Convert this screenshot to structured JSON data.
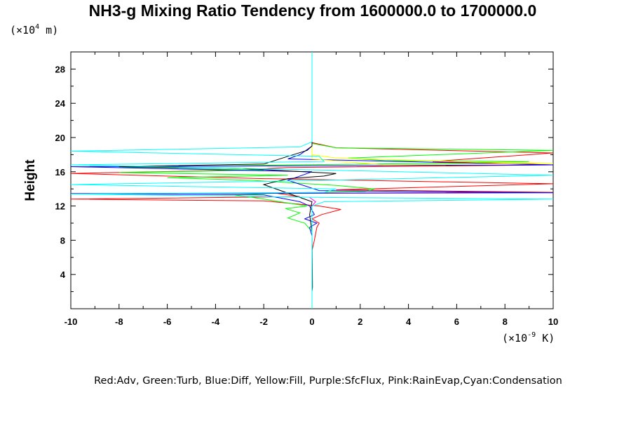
{
  "chart_data": {
    "type": "line",
    "title": "NH3-g Mixing Ratio Tendency from 1600000.0 to 1700000.0",
    "ylabel": "Height",
    "y_unit": {
      "prefix": "(×10",
      "exp": "4",
      "suffix": " m)"
    },
    "x_unit": {
      "prefix": "(×10",
      "exp": "-9",
      "suffix": " K)"
    },
    "xlim": [
      -10,
      10
    ],
    "ylim": [
      0,
      30
    ],
    "xticks": [
      -10,
      -8,
      -6,
      -4,
      -2,
      0,
      2,
      4,
      6,
      8,
      10
    ],
    "yticks": [
      4,
      8,
      12,
      16,
      20,
      24,
      28
    ],
    "grid": false,
    "legend": "Red:Adv, Green:Turb, Blue:Diff, Yellow:Fill, Purple:SfcFlux, Pink:RainEvap,Cyan:Condensation",
    "series": [
      {
        "color": "#ff0000",
        "points": [
          [
            0,
            0
          ],
          [
            0,
            6.8
          ],
          [
            0.1,
            8
          ],
          [
            0.2,
            9.5
          ],
          [
            0.3,
            10
          ],
          [
            0,
            10.5
          ],
          [
            0.4,
            11
          ],
          [
            1.2,
            11.6
          ],
          [
            0.3,
            12
          ],
          [
            -2,
            12.6
          ],
          [
            -10,
            12.8
          ],
          [
            -0.5,
            13.1
          ],
          [
            -1.5,
            13.5
          ],
          [
            10,
            13.6
          ],
          [
            1,
            13.9
          ],
          [
            10,
            14.6
          ],
          [
            -2,
            15.2
          ],
          [
            -10,
            15.8
          ],
          [
            -3,
            16.2
          ],
          [
            -1,
            16.5
          ],
          [
            10,
            16.8
          ],
          [
            5,
            17.2
          ],
          [
            10,
            18.2
          ],
          [
            1,
            18.8
          ],
          [
            0,
            19.4
          ],
          [
            0,
            30
          ]
        ]
      },
      {
        "color": "#00ff00",
        "points": [
          [
            0,
            0
          ],
          [
            0,
            9
          ],
          [
            -0.3,
            10
          ],
          [
            -1,
            10.6
          ],
          [
            -0.5,
            11.2
          ],
          [
            -1.1,
            11.7
          ],
          [
            -0.2,
            12
          ],
          [
            -2,
            12.8
          ],
          [
            -3.2,
            13.3
          ],
          [
            -1.5,
            13.5
          ],
          [
            2.2,
            13.7
          ],
          [
            2.6,
            14
          ],
          [
            1,
            14.4
          ],
          [
            -2.5,
            15
          ],
          [
            -6,
            15.3
          ],
          [
            -1,
            15.6
          ],
          [
            -8,
            15.9
          ],
          [
            -2,
            16.2
          ],
          [
            -8,
            16.5
          ],
          [
            -1,
            16.8
          ],
          [
            6,
            17
          ],
          [
            9,
            17.2
          ],
          [
            3,
            17.3
          ],
          [
            1.5,
            17.6
          ],
          [
            10,
            18.5
          ],
          [
            1,
            18.8
          ],
          [
            0,
            19.3
          ],
          [
            0,
            30
          ]
        ]
      },
      {
        "color": "#0000ff",
        "points": [
          [
            0,
            0
          ],
          [
            0,
            8.5
          ],
          [
            -0.1,
            9.5
          ],
          [
            0.2,
            10
          ],
          [
            -0.3,
            10.5
          ],
          [
            0.1,
            11
          ],
          [
            -0.1,
            12
          ],
          [
            -0.5,
            12.5
          ],
          [
            -2,
            13.3
          ],
          [
            -10,
            13.45
          ],
          [
            10,
            13.55
          ],
          [
            0.3,
            13.8
          ],
          [
            -1,
            15
          ],
          [
            0,
            16
          ],
          [
            -10,
            16.6
          ],
          [
            10,
            16.8
          ],
          [
            -1,
            17.5
          ],
          [
            -0.5,
            18
          ],
          [
            0,
            19
          ],
          [
            0,
            30
          ]
        ]
      },
      {
        "color": "#ffff00",
        "points": [
          [
            0,
            18
          ],
          [
            1,
            17.6
          ],
          [
            6,
            17.2
          ],
          [
            10,
            17
          ],
          [
            3,
            16.8
          ],
          [
            0,
            17.5
          ],
          [
            0,
            19.5
          ]
        ]
      },
      {
        "color": "#ff00ff",
        "points": [
          [
            0,
            0
          ],
          [
            0,
            0.5
          ],
          [
            0,
            12
          ],
          [
            0.15,
            12.5
          ],
          [
            -0.1,
            13
          ]
        ]
      },
      {
        "color": "#000000",
        "points": [
          [
            0,
            0
          ],
          [
            0,
            0.2
          ],
          [
            0,
            2
          ],
          [
            0.02,
            2.5
          ],
          [
            0,
            9
          ],
          [
            -0.1,
            11
          ],
          [
            0,
            12.5
          ],
          [
            -2,
            14.5
          ],
          [
            -1,
            15.2
          ],
          [
            0.5,
            15.5
          ],
          [
            1,
            15.8
          ],
          [
            -3,
            16.4
          ],
          [
            -8,
            16.6
          ],
          [
            -2,
            16.9
          ],
          [
            -1,
            17.8
          ],
          [
            -0.2,
            18.5
          ],
          [
            0,
            19
          ],
          [
            0,
            30
          ]
        ]
      },
      {
        "color": "#00ffff",
        "points": [
          [
            0,
            0
          ],
          [
            0,
            0.3
          ],
          [
            0,
            12
          ],
          [
            0.5,
            12.5
          ],
          [
            10,
            12.8
          ],
          [
            0.5,
            13
          ],
          [
            -10,
            13.4
          ],
          [
            0.5,
            13.6
          ],
          [
            1,
            14
          ],
          [
            -10,
            14.5
          ],
          [
            0.5,
            15
          ],
          [
            10,
            15.6
          ],
          [
            0.5,
            16.2
          ],
          [
            -10,
            16.8
          ],
          [
            0.5,
            17.2
          ],
          [
            0.3,
            17.8
          ],
          [
            -10,
            18.4
          ],
          [
            -0.5,
            18.9
          ],
          [
            0,
            19.5
          ],
          [
            0,
            30
          ]
        ]
      }
    ]
  }
}
